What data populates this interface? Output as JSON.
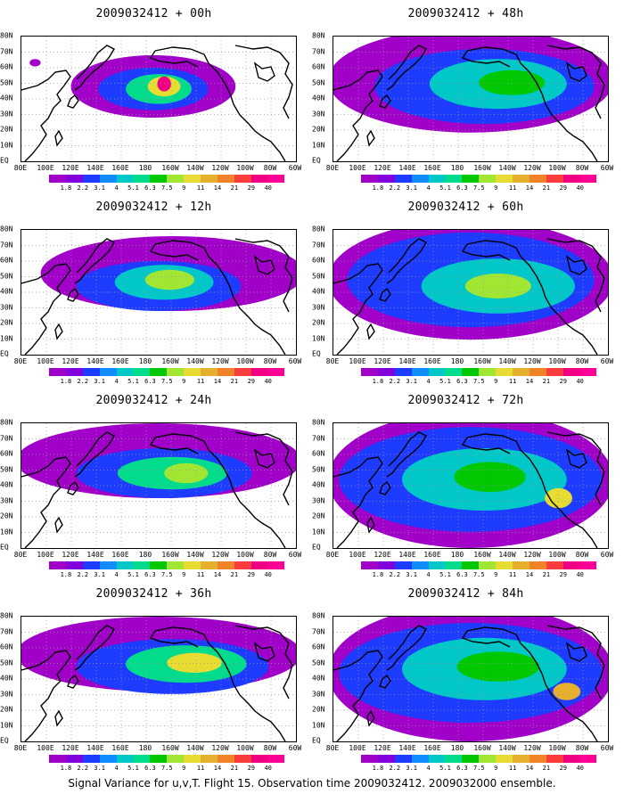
{
  "panels": [
    {
      "title": "2009032412 + 00h"
    },
    {
      "title": "2009032412 + 12h"
    },
    {
      "title": "2009032412 + 24h"
    },
    {
      "title": "2009032412 + 36h"
    },
    {
      "title": "2009032412 + 48h"
    },
    {
      "title": "2009032412 + 60h"
    },
    {
      "title": "2009032412 + 72h"
    },
    {
      "title": "2009032412 + 84h"
    }
  ],
  "lat_labels": [
    "80N",
    "70N",
    "60N",
    "50N",
    "40N",
    "30N",
    "20N",
    "10N",
    "EQ"
  ],
  "lon_labels": [
    "80E",
    "100E",
    "120E",
    "140E",
    "160E",
    "180",
    "160W",
    "140W",
    "120W",
    "100W",
    "80W",
    "60W"
  ],
  "colorbar": {
    "labels": [
      "1.8",
      "2.2",
      "3.1",
      "4",
      "5.1",
      "6.3",
      "7.5",
      "9",
      "11",
      "14",
      "21",
      "29",
      "40"
    ],
    "colors": [
      "#a000c8",
      "#8200dc",
      "#1e3cff",
      "#0f8cff",
      "#00c8c8",
      "#00dc8c",
      "#00c800",
      "#a0e632",
      "#e6dc32",
      "#e6af2d",
      "#f08228",
      "#fa3c3c",
      "#f00082",
      "#ff0096"
    ]
  },
  "caption": "Signal Variance for u,v,T. Flight 15. Observation time 2009032412. 2009032000 ensemble."
}
